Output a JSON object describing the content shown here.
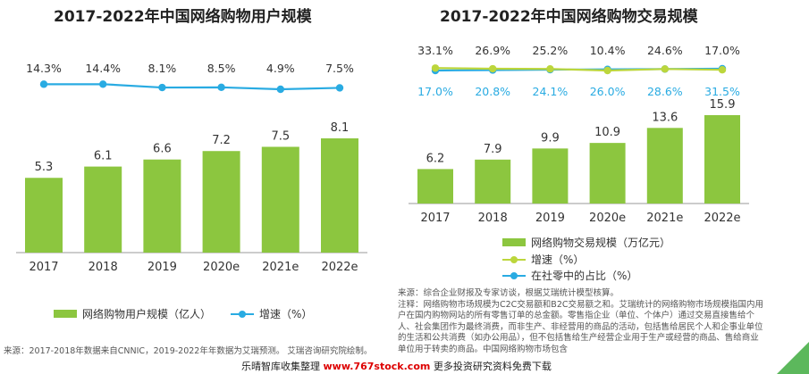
{
  "colors": {
    "bar": "#8cc63f",
    "rate_line": "#29abe2",
    "growth_line": "#bcd63c",
    "corner": "#5cb85c"
  },
  "chart_data": [
    {
      "type": "bar",
      "title": "2017-2022年中国网络购物用户规模",
      "categories": [
        "2017",
        "2018",
        "2019",
        "2020e",
        "2021e",
        "2022e"
      ],
      "series": [
        {
          "name": "网络购物用户规模（亿人）",
          "kind": "bar",
          "values": [
            5.3,
            6.1,
            6.6,
            7.2,
            7.5,
            8.1
          ],
          "labels": [
            "5.3",
            "6.1",
            "6.6",
            "7.2",
            "7.5",
            "8.1"
          ]
        },
        {
          "name": "增速（%）",
          "kind": "line",
          "values": [
            14.3,
            14.4,
            8.1,
            8.5,
            4.9,
            7.5
          ],
          "labels": [
            "14.3%",
            "14.4%",
            "8.1%",
            "8.5%",
            "4.9%",
            "7.5%"
          ]
        }
      ],
      "legend": "bottom",
      "grid": false
    },
    {
      "type": "bar",
      "title": "2017-2022年中国网络购物交易规模",
      "categories": [
        "2017",
        "2018",
        "2019",
        "2020e",
        "2021e",
        "2022e"
      ],
      "series": [
        {
          "name": "网络购物交易规模（万亿元）",
          "kind": "bar",
          "values": [
            6.2,
            7.9,
            9.9,
            10.9,
            13.6,
            15.9
          ],
          "labels": [
            "6.2",
            "7.9",
            "9.9",
            "10.9",
            "13.6",
            "15.9"
          ]
        },
        {
          "name": "增速（%）",
          "kind": "line",
          "values": [
            33.1,
            26.9,
            25.2,
            10.4,
            24.6,
            17.0
          ],
          "labels": [
            "33.1%",
            "26.9%",
            "25.2%",
            "10.4%",
            "24.6%",
            "17.0%"
          ]
        },
        {
          "name": "在社零中的占比（%）",
          "kind": "line",
          "values": [
            17.0,
            20.8,
            24.1,
            26.0,
            28.6,
            31.5
          ],
          "labels": [
            "17.0%",
            "20.8%",
            "24.1%",
            "26.0%",
            "28.6%",
            "31.5%"
          ]
        }
      ],
      "legend": "bottom",
      "grid": false
    }
  ],
  "left": {
    "source": "来源：2017-2018年数据来自CNNIC，2019-2022年年数据为艾瑞预测。 艾瑞咨询研究院绘制。"
  },
  "right": {
    "source": "来源：综合企业财报及专家访谈，根据艾瑞统计模型核算。",
    "note": "注释：网络购物市场规模为C2C交易额和B2C交易额之和。艾瑞统计的网络购物市场规模指国内用户在国内购物网站的所有零售订单的总金额。零售指企业（单位、个体户）通过交易直接售给个人、社会集团作为最终消费，而非生产、非经营用的商品的活动，包括售给居民个人和企事业单位的生活和公共消费（如办公用品），但不包括售给生产经营企业用于生产或经营的商品、售给商业单位用于转卖的商品。中国网络购物市场包含"
  },
  "footer": {
    "prefix": "乐晴智库收集整理",
    "url": "www.767stock.com",
    "suffix": "更多投资研究资料免费下载"
  }
}
